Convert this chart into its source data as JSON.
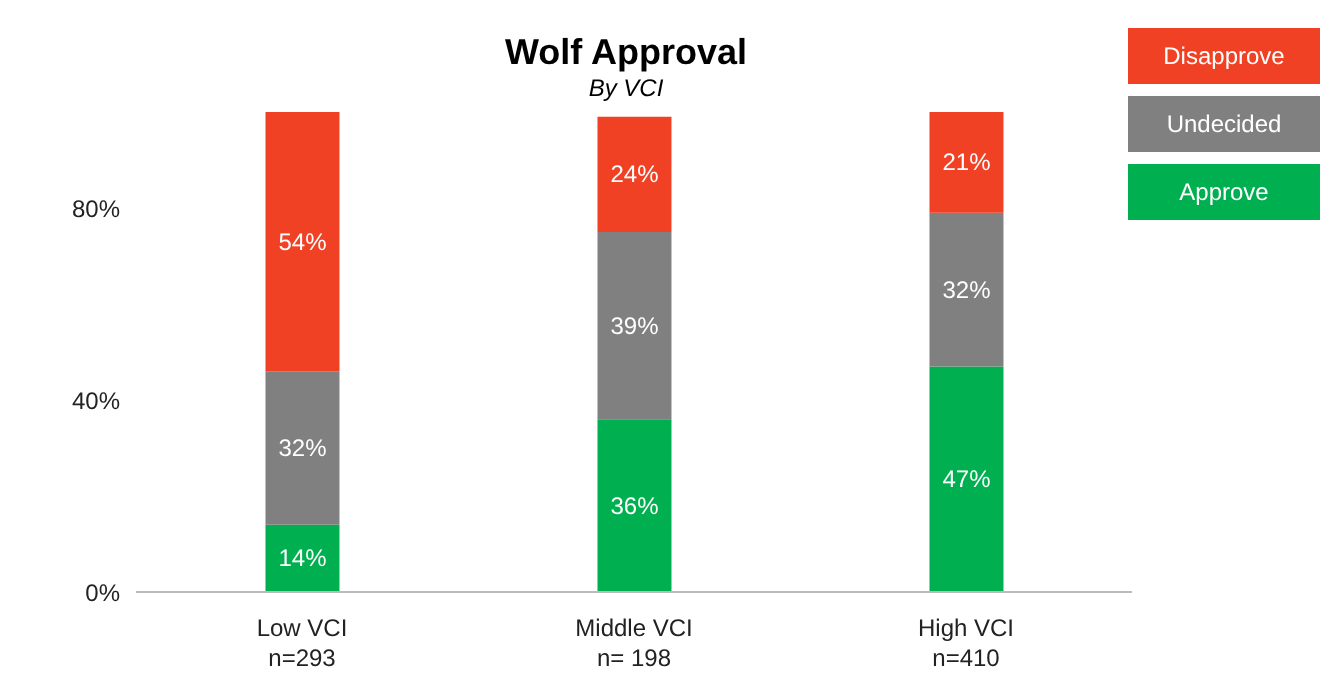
{
  "chart_data": {
    "type": "bar",
    "title": "Wolf Approval",
    "subtitle": "By VCI",
    "stacked": true,
    "categories": [
      "Low VCI\nn=293",
      "Middle VCI\nn= 198",
      "High VCI\nn=410"
    ],
    "series": [
      {
        "name": "Approve",
        "color": "#00b050",
        "values": [
          14,
          36,
          47
        ],
        "value_labels": [
          "14%",
          "36%",
          "47%"
        ]
      },
      {
        "name": "Undecided",
        "color": "#808080",
        "values": [
          32,
          39,
          32
        ],
        "value_labels": [
          "32%",
          "39%",
          "32%"
        ]
      },
      {
        "name": "Disapprove",
        "color": "#f04124",
        "values": [
          54,
          24,
          21
        ],
        "value_labels": [
          "54%",
          "24%",
          "21%"
        ]
      }
    ],
    "ylim": [
      0,
      100
    ],
    "yticks": [
      {
        "value": 0,
        "label": "0%"
      },
      {
        "value": 40,
        "label": "40%"
      },
      {
        "value": 80,
        "label": "80%"
      }
    ],
    "grid": false,
    "legend": "top right"
  }
}
